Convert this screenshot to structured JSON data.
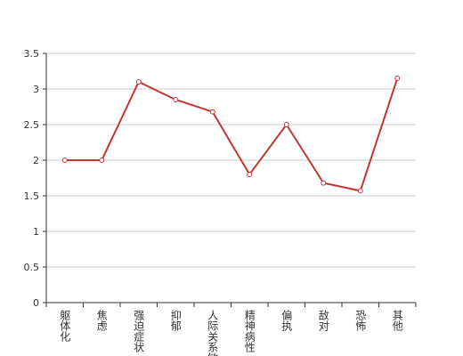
{
  "chart_data": {
    "type": "line",
    "categories": [
      "躯体化",
      "焦虑",
      "强迫症状",
      "抑郁",
      "人际关系敏感",
      "精神病性",
      "偏执",
      "敌对",
      "恐怖",
      "其他"
    ],
    "values": [
      2.0,
      2.0,
      3.1,
      2.85,
      2.68,
      1.8,
      2.5,
      1.68,
      1.57,
      3.15
    ],
    "color": "#c23531",
    "ylim": [
      0,
      3.5
    ],
    "yticks": [
      0,
      0.5,
      1,
      1.5,
      2,
      2.5,
      3,
      3.5
    ],
    "grid": true
  }
}
